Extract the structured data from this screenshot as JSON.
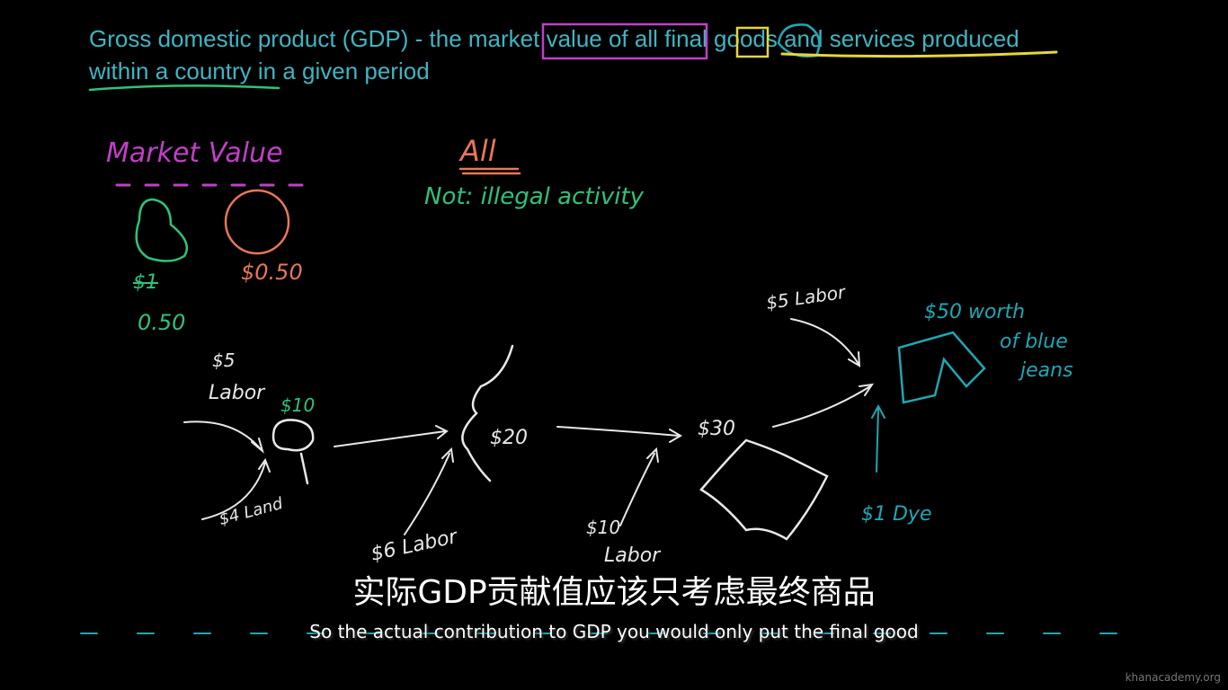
{
  "definition": {
    "line1": "Gross domestic product (GDP) - the market value of all final goods and services produced",
    "line2": "within a country in a given period"
  },
  "notes": {
    "market_value": "Market Value",
    "pear_price_old": "$1",
    "pear_price_new": "0.50",
    "orange_price": "$0.50",
    "all": "All",
    "not_illegal": "Not: illegal activity"
  },
  "flow": {
    "labor5": "$5",
    "labor5_label": "Labor",
    "tree_value": "$10",
    "land": "$4 Land",
    "cotton_value": "$20",
    "labor6": "$6 Labor",
    "fabric_value": "$30",
    "labor10": "$10",
    "labor10_label": "Labor",
    "labor5b": "$5 Labor",
    "jeans_value": "$50 worth",
    "jeans_label1": "of blue",
    "jeans_label2": "jeans",
    "dye": "$1 Dye"
  },
  "colors": {
    "definition": "#3fb5c4",
    "magenta": "#c23fc9",
    "orange": "#e8765a",
    "green": "#2fc27a",
    "yellow": "#e6d63a",
    "teal": "#1fa7b5",
    "white": "#e8e8e8"
  },
  "subtitles": {
    "chinese": "实际GDP贡献值应该只考虑最终商品",
    "english": "So the actual contribution to GDP you would only put the final good"
  },
  "watermark": "khanacademy.org"
}
